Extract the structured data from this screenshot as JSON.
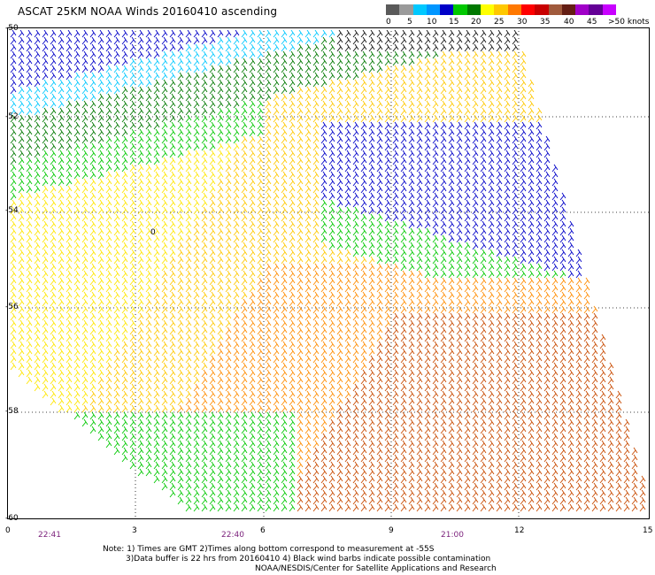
{
  "title": "ASCAT 25KM NOAA Winds 20160410 ascending",
  "colorbar": {
    "colors": [
      "#5a5a5a",
      "#9a9a9a",
      "#00c8ff",
      "#0096ff",
      "#0000c8",
      "#00c800",
      "#007800",
      "#ffff00",
      "#ffc800",
      "#ff7800",
      "#ff0000",
      "#c80000",
      "#a05a3c",
      "#641e14",
      "#a000c8",
      "#640096",
      "#c800ff"
    ],
    "labels": [
      "0",
      "5",
      "10",
      "15",
      "20",
      "25",
      "30",
      "35",
      "40",
      "45",
      ">50 knots"
    ]
  },
  "yaxis": [
    "-50",
    "-52",
    "-54",
    "-56",
    "-58",
    "-60"
  ],
  "xaxis": [
    "0",
    "3",
    "6",
    "9",
    "12",
    "15"
  ],
  "times": [
    "22:41",
    "22:40",
    "21:00"
  ],
  "notes": [
    "Note: 1) Times are GMT 2)Times along bottom correspond to measurement at -55S",
    "3)Data buffer is 22 hrs from 20160410 4) Black wind barbs indicate possible contamination",
    "NOAA/NESDIS/Center for Satellite Applications and Research"
  ],
  "annotation": "0"
}
